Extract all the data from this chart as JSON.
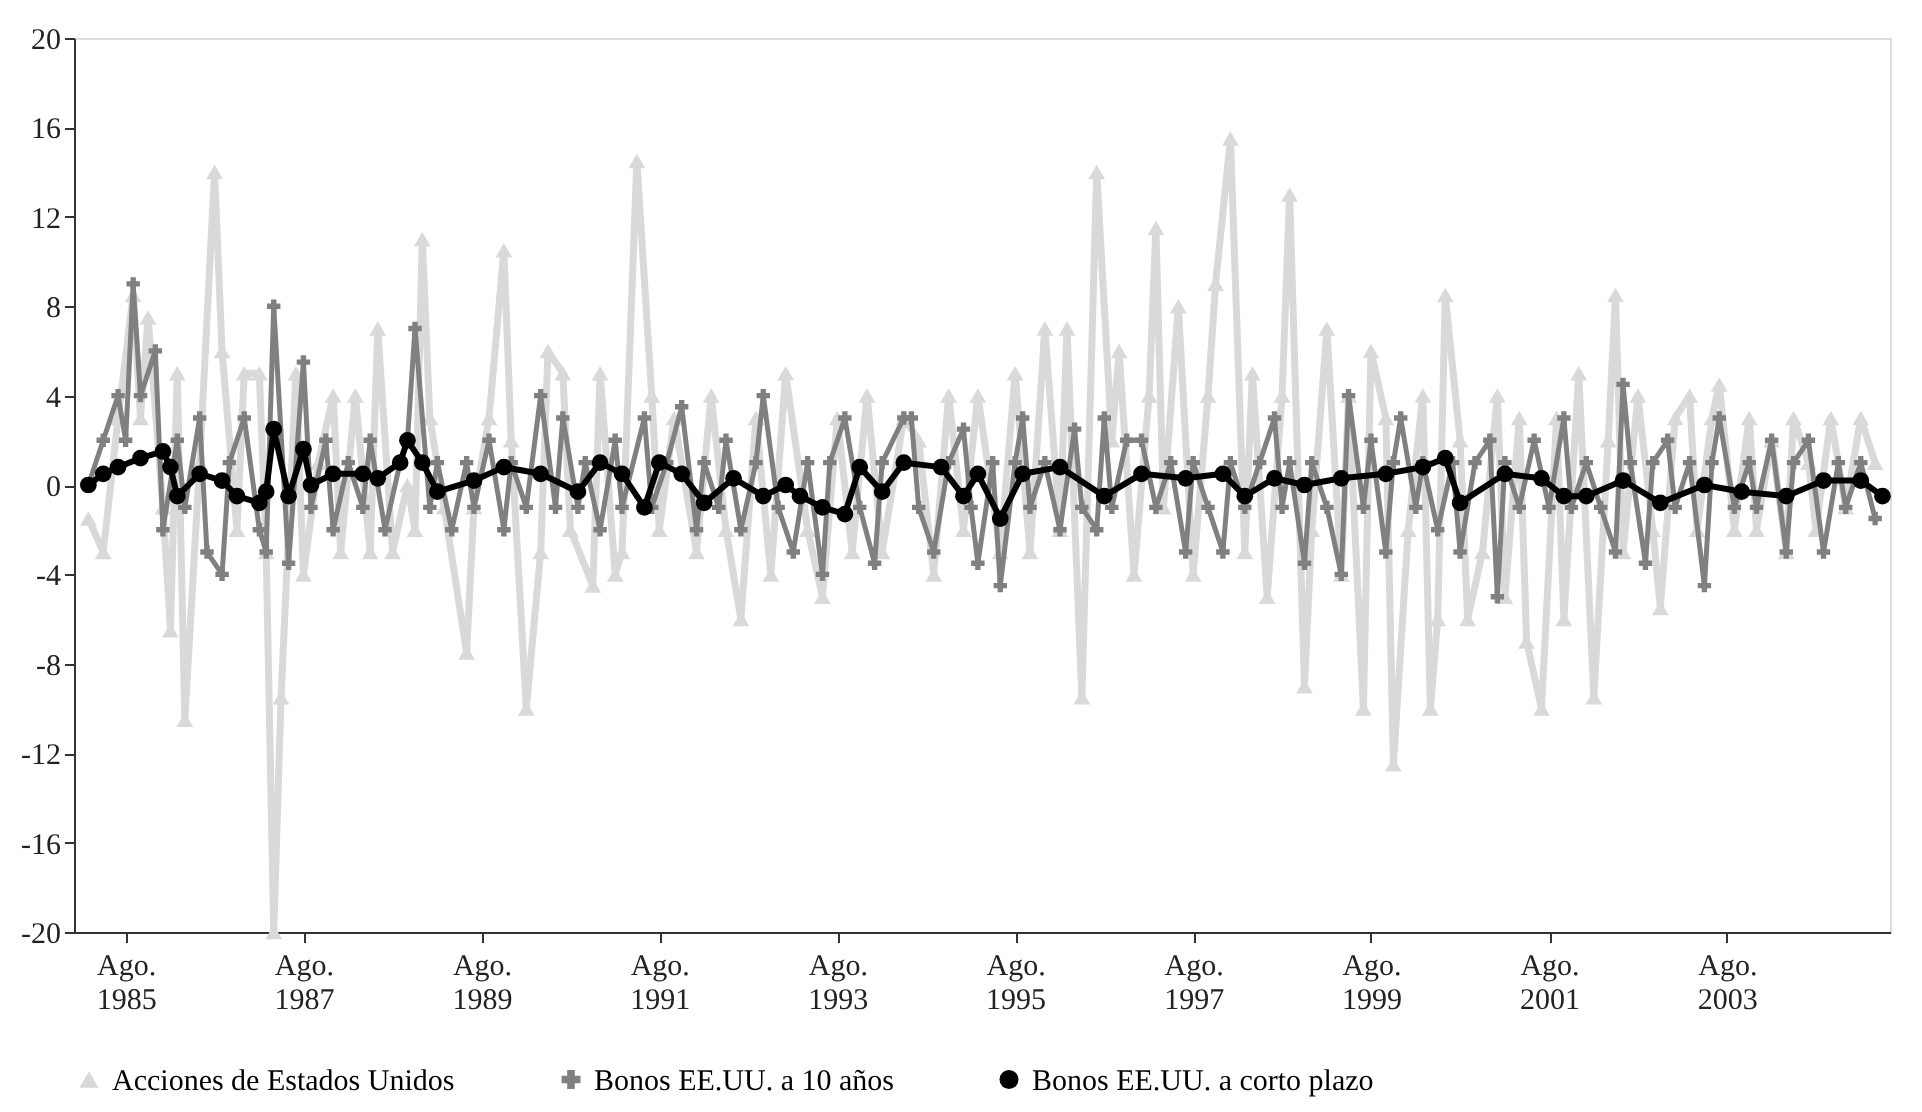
{
  "chart_data": {
    "type": "line",
    "legend": "bottom",
    "grid": false,
    "xlim": [
      "1985-01",
      "2005-06"
    ],
    "xticks": [
      {
        "value": "1985-08",
        "label": "Ago.\n1985"
      },
      {
        "value": "1987-08",
        "label": "Ago.\n1987"
      },
      {
        "value": "1989-08",
        "label": "Ago.\n1989"
      },
      {
        "value": "1991-08",
        "label": "Ago.\n1991"
      },
      {
        "value": "1993-08",
        "label": "Ago.\n1993"
      },
      {
        "value": "1995-08",
        "label": "Ago.\n1995"
      },
      {
        "value": "1997-08",
        "label": "Ago.\n1997"
      },
      {
        "value": "1999-08",
        "label": "Ago.\n1999"
      },
      {
        "value": "2001-08",
        "label": "Ago.\n2001"
      },
      {
        "value": "2003-08",
        "label": "Ago.\n2003"
      }
    ],
    "ylim": [
      -20,
      20
    ],
    "yticks": [
      -20,
      -16,
      -12,
      -8,
      -4,
      0,
      4,
      8,
      12,
      16,
      20
    ],
    "series": [
      {
        "name": "Acciones de Estados Unidos",
        "color": "#d9d9d9",
        "marker": "triangle",
        "x": [
          "1985-03",
          "1985-05",
          "1985-07",
          "1985-09",
          "1985-10",
          "1985-11",
          "1986-01",
          "1986-02",
          "1986-03",
          "1986-04",
          "1986-06",
          "1986-08",
          "1986-09",
          "1986-11",
          "1986-12",
          "1987-02",
          "1987-03",
          "1987-04",
          "1987-05",
          "1987-07",
          "1987-08",
          "1987-10",
          "1987-12",
          "1988-01",
          "1988-03",
          "1988-05",
          "1988-06",
          "1988-08",
          "1988-10",
          "1988-11",
          "1988-12",
          "1989-01",
          "1989-03",
          "1989-06",
          "1989-07",
          "1989-09",
          "1989-11",
          "1989-12",
          "1990-02",
          "1990-04",
          "1990-05",
          "1990-07",
          "1990-08",
          "1990-11",
          "1990-12",
          "1991-02",
          "1991-03",
          "1991-05",
          "1991-07",
          "1991-08",
          "1991-10",
          "1992-01",
          "1992-03",
          "1992-05",
          "1992-07",
          "1992-09",
          "1992-11",
          "1993-01",
          "1993-04",
          "1993-06",
          "1993-08",
          "1993-10",
          "1993-12",
          "1994-02",
          "1994-05",
          "1994-07",
          "1994-09",
          "1994-11",
          "1995-01",
          "1995-03",
          "1995-06",
          "1995-08",
          "1995-10",
          "1995-12",
          "1996-02",
          "1996-03",
          "1996-05",
          "1996-07",
          "1996-09",
          "1996-10",
          "1996-12",
          "1997-02",
          "1997-03",
          "1997-04",
          "1997-06",
          "1997-08",
          "1997-10",
          "1997-11",
          "1998-01",
          "1998-03",
          "1998-04",
          "1998-06",
          "1998-08",
          "1998-09",
          "1998-11",
          "1998-12",
          "1999-02",
          "1999-04",
          "1999-05",
          "1999-07",
          "1999-08",
          "1999-10",
          "1999-11",
          "2000-01",
          "2000-03",
          "2000-04",
          "2000-05",
          "2000-06",
          "2000-08",
          "2000-09",
          "2000-11",
          "2001-01",
          "2001-02",
          "2001-04",
          "2001-05",
          "2001-07",
          "2001-09",
          "2001-10",
          "2001-12",
          "2002-02",
          "2002-04",
          "2002-05",
          "2002-06",
          "2002-08",
          "2002-10",
          "2002-11",
          "2003-01",
          "2003-03",
          "2003-04",
          "2003-06",
          "2003-07",
          "2003-09",
          "2003-11",
          "2003-12",
          "2004-02",
          "2004-04",
          "2004-05",
          "2004-07",
          "2004-08",
          "2004-10",
          "2004-12",
          "2005-02",
          "2005-04"
        ],
        "values": [
          -1.5,
          -3,
          3,
          8.5,
          3,
          7.5,
          -1,
          -6.5,
          5,
          -10.5,
          1,
          14,
          6,
          -2,
          5,
          5,
          -3,
          -20,
          -9.5,
          5,
          -4,
          1,
          4,
          -3,
          4,
          -3,
          7,
          -3,
          0,
          -2,
          11,
          3,
          -1,
          -7.5,
          -1,
          3,
          10.5,
          2,
          -10,
          -3,
          6,
          5,
          -2,
          -4.5,
          5,
          -4,
          -3,
          14.5,
          4,
          -2,
          3,
          -3,
          4,
          -2,
          -6,
          3,
          -4,
          5,
          -2,
          -5,
          3,
          -3,
          4,
          -3,
          3,
          2,
          -4,
          4,
          -2,
          4,
          -3,
          5,
          -3,
          7,
          -2,
          7,
          -9.5,
          14,
          2,
          6,
          -4,
          4,
          11.5,
          -1,
          8,
          -4,
          4,
          9,
          15.5,
          -3,
          5,
          -5,
          4,
          13,
          -9,
          -2,
          7,
          -4,
          4,
          -10,
          6,
          3,
          -12.5,
          -2,
          4,
          -10,
          -6,
          8.5,
          2,
          -6,
          -3,
          4,
          -5,
          3,
          -7,
          -10,
          3,
          -6,
          5,
          -9.5,
          2,
          8.5,
          -3,
          4,
          -2,
          -5.5,
          3,
          4,
          -2,
          3,
          4.5,
          -2,
          3,
          -2,
          2,
          -3,
          3,
          1,
          -2,
          3,
          -1,
          3,
          1
        ]
      },
      {
        "name": "Bonos EE.UU. a 10 años",
        "color": "#808080",
        "marker": "cross",
        "x": [
          "1985-03",
          "1985-05",
          "1985-07",
          "1985-08",
          "1985-09",
          "1985-10",
          "1985-12",
          "1986-01",
          "1986-03",
          "1986-04",
          "1986-06",
          "1986-07",
          "1986-09",
          "1986-10",
          "1986-12",
          "1987-02",
          "1987-03",
          "1987-04",
          "1987-06",
          "1987-08",
          "1987-09",
          "1987-11",
          "1987-12",
          "1988-02",
          "1988-04",
          "1988-05",
          "1988-07",
          "1988-09",
          "1988-10",
          "1988-11",
          "1989-01",
          "1989-02",
          "1989-04",
          "1989-06",
          "1989-07",
          "1989-09",
          "1989-11",
          "1989-12",
          "1990-02",
          "1990-04",
          "1990-06",
          "1990-07",
          "1990-09",
          "1990-10",
          "1990-12",
          "1991-02",
          "1991-03",
          "1991-06",
          "1991-07",
          "1991-09",
          "1991-11",
          "1992-01",
          "1992-02",
          "1992-04",
          "1992-05",
          "1992-07",
          "1992-09",
          "1992-10",
          "1992-12",
          "1993-02",
          "1993-04",
          "1993-06",
          "1993-07",
          "1993-09",
          "1993-11",
          "1994-01",
          "1994-02",
          "1994-05",
          "1994-06",
          "1994-07",
          "1994-09",
          "1994-11",
          "1995-01",
          "1995-02",
          "1995-03",
          "1995-05",
          "1995-06",
          "1995-08",
          "1995-09",
          "1995-10",
          "1995-12",
          "1996-02",
          "1996-04",
          "1996-05",
          "1996-07",
          "1996-08",
          "1996-09",
          "1996-11",
          "1997-01",
          "1997-03",
          "1997-05",
          "1997-07",
          "1997-08",
          "1997-10",
          "1997-12",
          "1998-01",
          "1998-03",
          "1998-05",
          "1998-07",
          "1998-08",
          "1998-09",
          "1998-11",
          "1998-12",
          "1999-02",
          "1999-04",
          "1999-05",
          "1999-07",
          "1999-08",
          "1999-10",
          "1999-11",
          "1999-12",
          "2000-02",
          "2000-03",
          "2000-05",
          "2000-07",
          "2000-08",
          "2000-10",
          "2000-12",
          "2001-01",
          "2001-02",
          "2001-04",
          "2001-06",
          "2001-08",
          "2001-10",
          "2001-11",
          "2002-01",
          "2002-03",
          "2002-05",
          "2002-06",
          "2002-07",
          "2002-09",
          "2002-10",
          "2002-12",
          "2003-01",
          "2003-03",
          "2003-05",
          "2003-06",
          "2003-07",
          "2003-09",
          "2003-11",
          "2003-12",
          "2004-02",
          "2004-04",
          "2004-05",
          "2004-07",
          "2004-09",
          "2004-11",
          "2004-12",
          "2005-02",
          "2005-04"
        ],
        "values": [
          0,
          2,
          4,
          2,
          9,
          4,
          6,
          -2,
          2,
          -1,
          3,
          -3,
          -4,
          1,
          3,
          -2,
          -3,
          8,
          -3.5,
          5.5,
          -1,
          2,
          -2,
          1,
          -1,
          2,
          -2,
          1,
          2,
          7,
          -1,
          1,
          -2,
          1,
          -1,
          2,
          -2,
          1,
          -1,
          4,
          -1,
          3,
          -1,
          1,
          -2,
          2,
          -1,
          3,
          -1,
          1,
          3.5,
          -2,
          1,
          -1,
          2,
          -2,
          1,
          4,
          -1,
          -3,
          1,
          -4,
          1,
          3,
          -1,
          -3.5,
          1,
          3,
          3,
          -1,
          -3,
          1,
          2.5,
          -1,
          -3.5,
          1,
          -4.5,
          1,
          3,
          -1,
          1,
          -2,
          2.5,
          -1,
          -2,
          3,
          -1,
          2,
          2,
          -1,
          1,
          -3,
          1,
          -1,
          -3,
          1,
          -1,
          1,
          3,
          -1,
          1,
          -3.5,
          1,
          -1,
          -4,
          4,
          -1,
          2,
          -3,
          1,
          3,
          -1,
          1,
          -2,
          1,
          -3,
          1,
          2,
          -5,
          1,
          -1,
          2,
          -1,
          3,
          -1,
          1,
          -1,
          -3,
          4.5,
          1,
          -3.5,
          1,
          2,
          -1,
          1,
          -4.5,
          1,
          3,
          -1,
          1,
          -1,
          2,
          -3,
          1,
          2,
          -3,
          1,
          -1,
          1,
          -1.5
        ]
      },
      {
        "name": "Bonos EE.UU. a corto plazo",
        "color": "#000000",
        "marker": "circle",
        "x": [
          "1985-03",
          "1985-05",
          "1985-07",
          "1985-10",
          "1986-01",
          "1986-02",
          "1986-03",
          "1986-06",
          "1986-09",
          "1986-11",
          "1987-02",
          "1987-03",
          "1987-04",
          "1987-06",
          "1987-08",
          "1987-09",
          "1987-12",
          "1988-04",
          "1988-06",
          "1988-09",
          "1988-10",
          "1988-12",
          "1989-02",
          "1989-07",
          "1989-11",
          "1990-04",
          "1990-09",
          "1990-12",
          "1991-03",
          "1991-06",
          "1991-08",
          "1991-11",
          "1992-02",
          "1992-06",
          "1992-10",
          "1993-01",
          "1993-03",
          "1993-06",
          "1993-09",
          "1993-11",
          "1994-02",
          "1994-05",
          "1994-10",
          "1995-01",
          "1995-03",
          "1995-06",
          "1995-09",
          "1996-02",
          "1996-08",
          "1997-01",
          "1997-07",
          "1997-12",
          "1998-03",
          "1998-07",
          "1998-11",
          "1999-04",
          "1999-10",
          "2000-03",
          "2000-06",
          "2000-08",
          "2001-02",
          "2001-07",
          "2001-10",
          "2002-01",
          "2002-06",
          "2002-11",
          "2003-05",
          "2003-10",
          "2004-04",
          "2004-09",
          "2005-02",
          "2005-05"
        ],
        "values": [
          0,
          0.5,
          0.8,
          1.2,
          1.5,
          0.8,
          -0.5,
          0.5,
          0.2,
          -0.5,
          -0.8,
          -0.3,
          2.5,
          -0.5,
          1.6,
          0,
          0.5,
          0.5,
          0.3,
          1,
          2,
          1,
          -0.3,
          0.2,
          0.8,
          0.5,
          -0.3,
          1,
          0.5,
          -1,
          1,
          0.5,
          -0.8,
          0.3,
          -0.5,
          0,
          -0.5,
          -1,
          -1.3,
          0.8,
          -0.3,
          1,
          0.8,
          -0.5,
          0.5,
          -1.5,
          0.5,
          0.8,
          -0.5,
          0.5,
          0.3,
          0.5,
          -0.5,
          0.3,
          0,
          0.3,
          0.5,
          0.8,
          1.2,
          -0.8,
          0.5,
          0.3,
          -0.5,
          -0.5,
          0.2,
          -0.8,
          0,
          -0.3,
          -0.5,
          0.2,
          0.2,
          -0.5
        ]
      }
    ]
  }
}
